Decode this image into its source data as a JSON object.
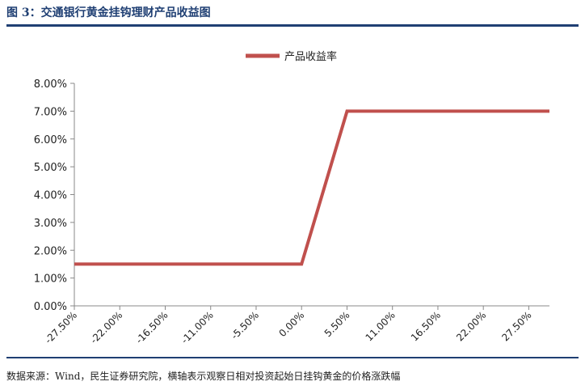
{
  "figure": {
    "title": "图 3：交通银行黄金挂钩理财产品收益图",
    "source": "数据来源：Wind，民生证券研究院，横轴表示观察日相对投资起始日挂钩黄金的价格涨跌幅"
  },
  "chart_data": {
    "type": "line",
    "x_categories": [
      "-27.50%",
      "-22.00%",
      "-16.50%",
      "-11.00%",
      "-5.50%",
      "0.00%",
      "5.50%",
      "11.00%",
      "16.50%",
      "22.00%",
      "27.50%"
    ],
    "x_range": [
      -27.5,
      30.0
    ],
    "y_ticks": [
      "0.00%",
      "1.00%",
      "2.00%",
      "3.00%",
      "4.00%",
      "5.00%",
      "6.00%",
      "7.00%",
      "8.00%"
    ],
    "ylim": [
      0,
      8
    ],
    "series": [
      {
        "name": "产品收益率",
        "color": "#c0504d",
        "points": [
          [
            -27.5,
            1.5
          ],
          [
            0.0,
            1.5
          ],
          [
            5.5,
            7.0
          ],
          [
            30.0,
            7.0
          ]
        ]
      }
    ],
    "legend_position": "top-center",
    "grid": false
  }
}
